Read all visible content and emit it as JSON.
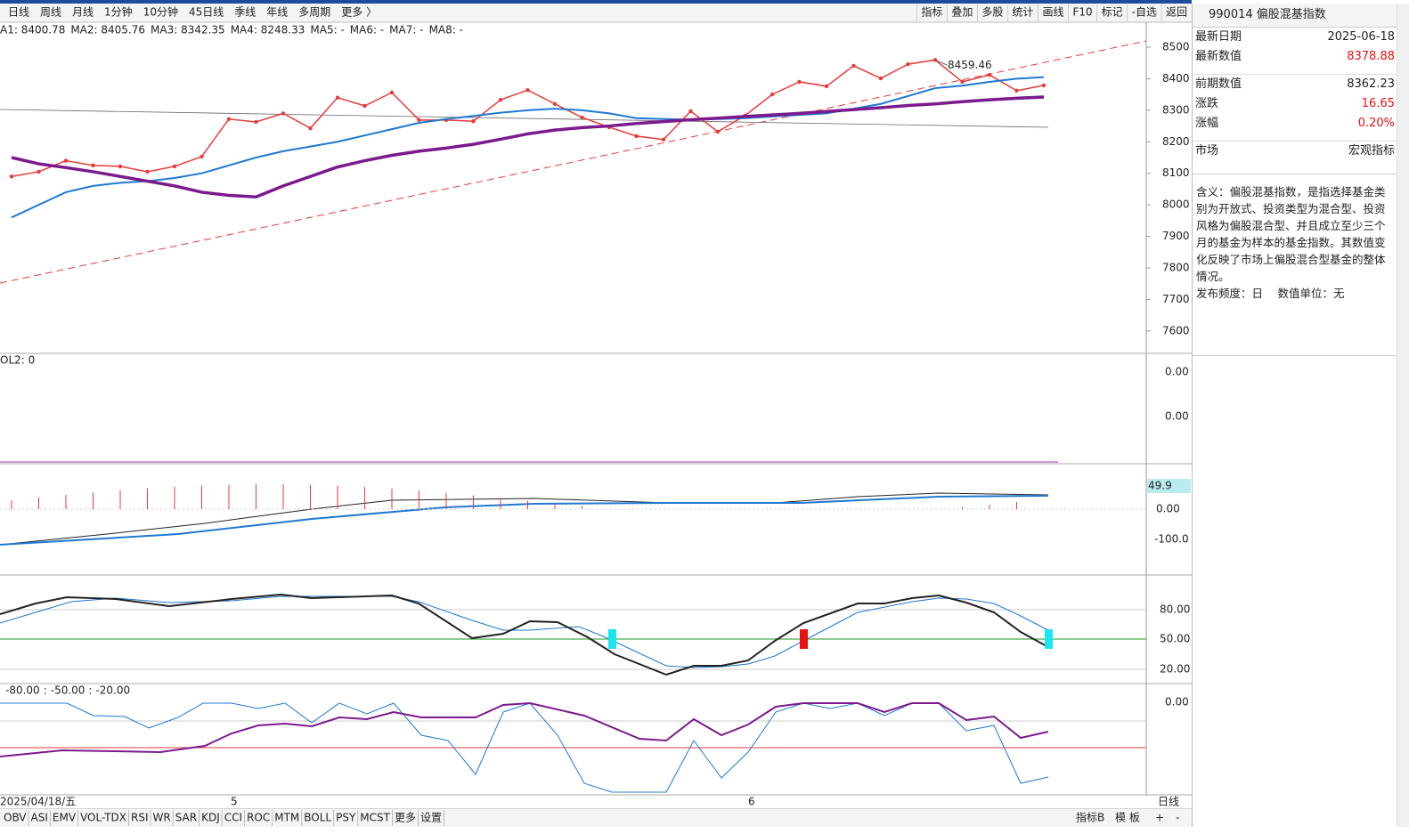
{
  "toolbar": {
    "periods": [
      "日线",
      "周线",
      "月线",
      "1分钟",
      "10分钟",
      "45日线",
      "季线",
      "年线",
      "多周期",
      "更多 〉"
    ],
    "buttons": [
      "指标",
      "叠加",
      "多股",
      "统计",
      "画线",
      "F10",
      "标记",
      "-自选",
      "返回"
    ]
  },
  "chart_data": {
    "type": "line",
    "ma_legend": [
      {
        "text": "A1: 8400.78",
        "color": "#1c3fa6"
      },
      {
        "text": "MA2: 8405.76",
        "color": "#1f78d1"
      },
      {
        "text": "MA3: 8342.35",
        "color": "#7b1a8c"
      },
      {
        "text": "MA4: 8248.33",
        "color": "#888888"
      },
      {
        "text": "MA5: -",
        "color": "#1a9a1a"
      },
      {
        "text": "MA6: -",
        "color": "#19d4e6"
      },
      {
        "text": "MA7: -",
        "color": "#333333"
      },
      {
        "text": "MA8: -",
        "color": "#1f78d1"
      }
    ],
    "series": [
      {
        "name": "close",
        "color": "#e83a3a",
        "values": [
          8090,
          8105,
          8140,
          8125,
          8122,
          8105,
          8122,
          8153,
          8272,
          8263,
          8290,
          8243,
          8340,
          8314,
          8356,
          8269,
          8269,
          8265,
          8333,
          8364,
          8320,
          8277,
          8246,
          8218,
          8207,
          8297,
          8232,
          8283,
          8350,
          8390,
          8376,
          8441,
          8401,
          8446,
          8459.46,
          8390,
          8412,
          8362,
          8378.88
        ]
      },
      {
        "name": "MA2",
        "color": "#1f78d1",
        "values": [
          7960,
          8000,
          8040,
          8060,
          8070,
          8075,
          8085,
          8100,
          8125,
          8150,
          8170,
          8185,
          8200,
          8220,
          8240,
          8260,
          8272,
          8282,
          8292,
          8300,
          8305,
          8300,
          8290,
          8275,
          8272,
          8270,
          8272,
          8275,
          8280,
          8285,
          8290,
          8305,
          8320,
          8345,
          8370,
          8378,
          8390,
          8400,
          8405
        ]
      },
      {
        "name": "MA3",
        "color": "#7b1a8c",
        "values": [
          8150,
          8130,
          8118,
          8105,
          8090,
          8075,
          8060,
          8040,
          8030,
          8025,
          8060,
          8090,
          8120,
          8140,
          8157,
          8170,
          8180,
          8192,
          8208,
          8225,
          8237,
          8245,
          8250,
          8258,
          8264,
          8270,
          8275,
          8280,
          8285,
          8290,
          8296,
          8302,
          8308,
          8315,
          8320,
          8327,
          8333,
          8338,
          8342
        ]
      }
    ],
    "annotation": "8459.46",
    "ylim": [
      7529,
      8579
    ],
    "yticks": [
      8500,
      8400,
      8300,
      8200,
      8100,
      8000,
      7900,
      7800,
      7700,
      7600
    ]
  },
  "panels": {
    "vol_label": "OL2: 0",
    "vol_ticks": [
      "0.00",
      "0.00"
    ],
    "macd_ticks": [
      "0.00",
      "-100.0"
    ],
    "macd_box": "49.9",
    "kdj_ticks": [
      "80.00",
      "50.00",
      "20.00"
    ],
    "wr_ticks": [
      "0.00"
    ],
    "wr_label": [
      "-80.00",
      ":",
      "-50.00",
      ":",
      "-20.00"
    ]
  },
  "dates": {
    "start": "2025/04/18/五",
    "m5": "5",
    "m6": "6",
    "period": "日线"
  },
  "tabs": [
    "OBV",
    "ASI",
    "EMV",
    "VOL-TDX",
    "RSI",
    "WR",
    "SAR",
    "KDJ",
    "CCI",
    "ROC",
    "MTM",
    "BOLL",
    "PSY",
    "MCST",
    "更多",
    "设置"
  ],
  "tabs_right": [
    "指标B",
    "模 板",
    "+",
    "-"
  ],
  "info": {
    "title": "990014 偏股混基指数",
    "rows": [
      [
        "最新日期",
        "2025-06-18"
      ],
      [
        "最新数值",
        "8378.88"
      ],
      [
        "前期数值",
        "8362.23"
      ],
      [
        "涨跌",
        "16.65"
      ],
      [
        "涨幅",
        "0.20%"
      ],
      [
        "市场",
        "宏观指标"
      ]
    ],
    "desc": "含义：偏股混基指数，是指选择基金类别为开放式、投资类型为混合型、投资风格为偏股混合型、并且成立至少三个月的基金为样本的基金指数。其数值变化反映了市场上偏股混合型基金的整体情况。",
    "freq": "发布频度：日　 数值单位：无"
  }
}
